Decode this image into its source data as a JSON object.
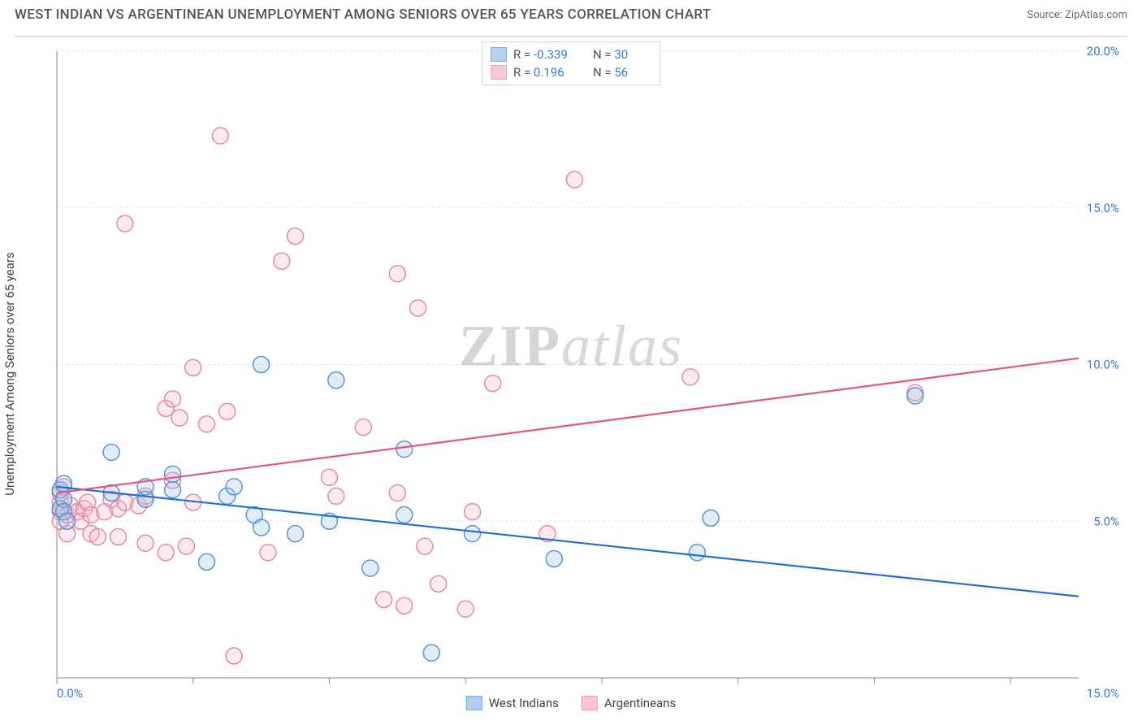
{
  "header": {
    "title": "WEST INDIAN VS ARGENTINEAN UNEMPLOYMENT AMONG SENIORS OVER 65 YEARS CORRELATION CHART",
    "source_prefix": "Source: ",
    "source_name": "ZipAtlas.com"
  },
  "chart": {
    "type": "scatter-with-regression",
    "y_axis_label": "Unemployment Among Seniors over 65 years",
    "background_color": "#ffffff",
    "grid_color": "#e3e3ea",
    "axis_line_color": "#8a8a92",
    "tick_label_color": "#3b78d8",
    "xlim": [
      0,
      15
    ],
    "ylim": [
      0,
      20
    ],
    "x_ticks": [
      0,
      2,
      4,
      6,
      8,
      10,
      12,
      14
    ],
    "x_tick_labels_shown": {
      "0": "0.0%",
      "15": "15.0%"
    },
    "y_ticks": [
      5,
      10,
      15,
      20
    ],
    "y_tick_labels": {
      "5": "5.0%",
      "10": "10.0%",
      "15": "15.0%",
      "20": "20.0%"
    },
    "point_radius": 10,
    "point_stroke_width": 1.5,
    "point_fill_opacity": 0.3,
    "trend_line_width": 2.2,
    "watermark": {
      "zip": "ZIP",
      "atlas": "atlas"
    },
    "series": [
      {
        "key": "west_indians",
        "label": "West Indians",
        "color_stroke": "#5a94d6",
        "color_fill": "#9dc3ea",
        "trend_color": "#1f6fd1",
        "R": "-0.339",
        "N": "30",
        "trend": {
          "x1": 0,
          "y1": 6.1,
          "x2": 15,
          "y2": 2.6
        },
        "points": [
          [
            0.05,
            5.4
          ],
          [
            0.05,
            6.0
          ],
          [
            0.1,
            5.7
          ],
          [
            0.1,
            5.3
          ],
          [
            0.1,
            6.2
          ],
          [
            0.15,
            5.0
          ],
          [
            0.8,
            5.9
          ],
          [
            0.8,
            7.2
          ],
          [
            1.3,
            6.1
          ],
          [
            1.3,
            5.7
          ],
          [
            1.7,
            6.0
          ],
          [
            1.7,
            6.5
          ],
          [
            2.2,
            3.7
          ],
          [
            2.5,
            5.8
          ],
          [
            2.6,
            6.1
          ],
          [
            2.9,
            5.2
          ],
          [
            3.0,
            4.8
          ],
          [
            3.0,
            10.0
          ],
          [
            3.5,
            4.6
          ],
          [
            4.0,
            5.0
          ],
          [
            4.1,
            9.5
          ],
          [
            4.6,
            3.5
          ],
          [
            5.1,
            7.3
          ],
          [
            5.1,
            5.2
          ],
          [
            5.5,
            0.8
          ],
          [
            6.1,
            4.6
          ],
          [
            7.3,
            3.8
          ],
          [
            9.4,
            4.0
          ],
          [
            9.6,
            5.1
          ],
          [
            12.6,
            9.0
          ]
        ]
      },
      {
        "key": "argentineans",
        "label": "Argentineans",
        "color_stroke": "#e58aa5",
        "color_fill": "#f4b8c9",
        "trend_color": "#e6547f",
        "R": "0.196",
        "N": "56",
        "trend": {
          "x1": 0,
          "y1": 5.9,
          "x2": 15,
          "y2": 10.2
        },
        "points": [
          [
            0.05,
            5.6
          ],
          [
            0.05,
            5.3
          ],
          [
            0.05,
            5.0
          ],
          [
            0.05,
            5.9
          ],
          [
            0.1,
            6.1
          ],
          [
            0.15,
            5.2
          ],
          [
            0.15,
            4.6
          ],
          [
            0.2,
            5.5
          ],
          [
            0.3,
            5.3
          ],
          [
            0.35,
            5.0
          ],
          [
            0.4,
            5.4
          ],
          [
            0.45,
            5.6
          ],
          [
            0.5,
            5.2
          ],
          [
            0.5,
            4.6
          ],
          [
            0.6,
            4.5
          ],
          [
            0.7,
            5.3
          ],
          [
            0.8,
            5.7
          ],
          [
            0.9,
            5.4
          ],
          [
            0.9,
            4.5
          ],
          [
            1.0,
            5.6
          ],
          [
            1.0,
            14.5
          ],
          [
            1.2,
            5.5
          ],
          [
            1.3,
            5.8
          ],
          [
            1.3,
            4.3
          ],
          [
            1.6,
            8.6
          ],
          [
            1.6,
            4.0
          ],
          [
            1.7,
            8.9
          ],
          [
            1.7,
            6.3
          ],
          [
            1.8,
            8.3
          ],
          [
            1.9,
            4.2
          ],
          [
            2.0,
            5.6
          ],
          [
            2.0,
            9.9
          ],
          [
            2.2,
            8.1
          ],
          [
            2.4,
            17.3
          ],
          [
            2.5,
            8.5
          ],
          [
            2.6,
            0.7
          ],
          [
            3.1,
            4.0
          ],
          [
            3.3,
            13.3
          ],
          [
            3.5,
            14.1
          ],
          [
            4.0,
            6.4
          ],
          [
            4.1,
            5.8
          ],
          [
            4.5,
            8.0
          ],
          [
            4.8,
            2.5
          ],
          [
            5.0,
            5.9
          ],
          [
            5.0,
            12.9
          ],
          [
            5.1,
            2.3
          ],
          [
            5.3,
            11.8
          ],
          [
            5.4,
            4.2
          ],
          [
            5.6,
            3.0
          ],
          [
            6.0,
            2.2
          ],
          [
            6.1,
            5.3
          ],
          [
            6.4,
            9.4
          ],
          [
            7.2,
            4.6
          ],
          [
            7.6,
            15.9
          ],
          [
            9.3,
            9.6
          ],
          [
            12.6,
            9.1
          ]
        ]
      }
    ],
    "bottom_legend": [
      {
        "label": "West Indians",
        "stroke": "#5a94d6",
        "fill": "#9dc3ea"
      },
      {
        "label": "Argentineans",
        "stroke": "#e58aa5",
        "fill": "#f4b8c9"
      }
    ]
  }
}
